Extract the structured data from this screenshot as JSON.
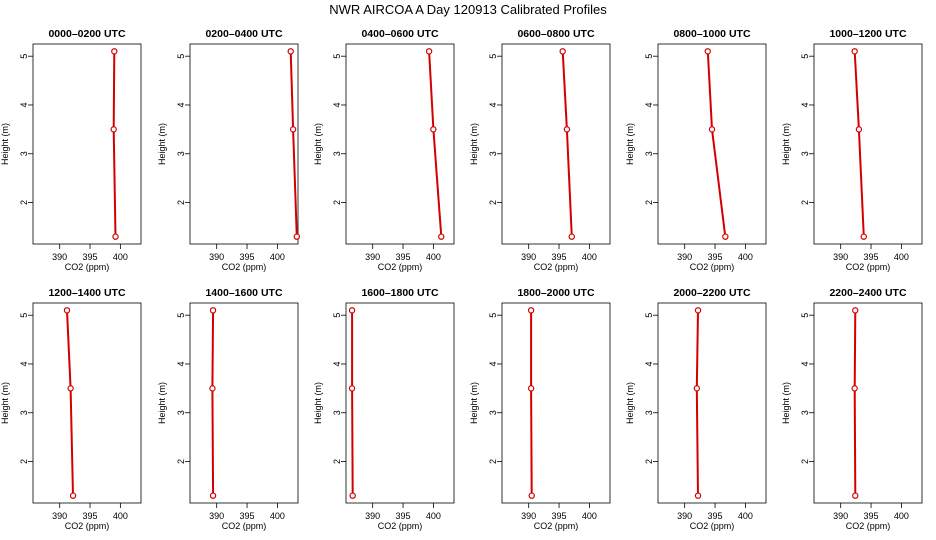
{
  "title": "NWR AIRCOA A  Day 120913  Calibrated Profiles",
  "chart_data": {
    "type": "line",
    "line_color": "#d40000",
    "marker_color": "#d40000",
    "xlabel": "CO2 (ppm)",
    "ylabel": "Height (m)",
    "xticks": [
      390,
      395,
      400
    ],
    "yticks": [
      2,
      3,
      4,
      5
    ],
    "panels": [
      {
        "title": "0000–0200 UTC",
        "xlim": [
          385.6,
          403.4
        ],
        "ylim": [
          1.15,
          5.25
        ],
        "x": [
          399.0,
          398.9,
          399.2
        ],
        "y": [
          5.1,
          3.5,
          1.3
        ]
      },
      {
        "title": "0200–0400 UTC",
        "xlim": [
          385.6,
          403.4
        ],
        "ylim": [
          1.15,
          5.25
        ],
        "x": [
          402.2,
          402.6,
          403.2
        ],
        "y": [
          5.1,
          3.5,
          1.3
        ]
      },
      {
        "title": "0400–0600 UTC",
        "xlim": [
          385.6,
          403.4
        ],
        "ylim": [
          1.15,
          5.25
        ],
        "x": [
          399.3,
          400.0,
          401.3
        ],
        "y": [
          5.1,
          3.5,
          1.3
        ]
      },
      {
        "title": "0600–0800 UTC",
        "xlim": [
          385.6,
          403.4
        ],
        "ylim": [
          1.15,
          5.25
        ],
        "x": [
          395.6,
          396.3,
          397.1
        ],
        "y": [
          5.1,
          3.5,
          1.3
        ]
      },
      {
        "title": "0800–1000 UTC",
        "xlim": [
          385.6,
          403.4
        ],
        "ylim": [
          1.15,
          5.25
        ],
        "x": [
          393.8,
          394.5,
          396.7
        ],
        "y": [
          5.1,
          3.5,
          1.3
        ]
      },
      {
        "title": "1000–1200 UTC",
        "xlim": [
          385.6,
          403.4
        ],
        "ylim": [
          1.15,
          5.25
        ],
        "x": [
          392.3,
          393.0,
          393.8
        ],
        "y": [
          5.1,
          3.5,
          1.3
        ]
      },
      {
        "title": "1200–1400 UTC",
        "xlim": [
          385.6,
          403.4
        ],
        "ylim": [
          1.15,
          5.25
        ],
        "x": [
          391.2,
          391.8,
          392.2
        ],
        "y": [
          5.1,
          3.5,
          1.3
        ]
      },
      {
        "title": "1400–1600 UTC",
        "xlim": [
          385.6,
          403.4
        ],
        "ylim": [
          1.15,
          5.25
        ],
        "x": [
          389.4,
          389.3,
          389.4
        ],
        "y": [
          5.1,
          3.5,
          1.3
        ]
      },
      {
        "title": "1600–1800 UTC",
        "xlim": [
          385.6,
          403.4
        ],
        "ylim": [
          1.15,
          5.25
        ],
        "x": [
          386.6,
          386.6,
          386.7
        ],
        "y": [
          5.1,
          3.5,
          1.3
        ]
      },
      {
        "title": "1800–2000 UTC",
        "xlim": [
          385.6,
          403.4
        ],
        "ylim": [
          1.15,
          5.25
        ],
        "x": [
          390.4,
          390.4,
          390.5
        ],
        "y": [
          5.1,
          3.5,
          1.3
        ]
      },
      {
        "title": "2000–2200 UTC",
        "xlim": [
          385.6,
          403.4
        ],
        "ylim": [
          1.15,
          5.25
        ],
        "x": [
          392.2,
          392.0,
          392.2
        ],
        "y": [
          5.1,
          3.5,
          1.3
        ]
      },
      {
        "title": "2200–2400 UTC",
        "xlim": [
          385.6,
          403.4
        ],
        "ylim": [
          1.15,
          5.25
        ],
        "x": [
          392.4,
          392.3,
          392.4
        ],
        "y": [
          5.1,
          3.5,
          1.3
        ]
      }
    ]
  }
}
